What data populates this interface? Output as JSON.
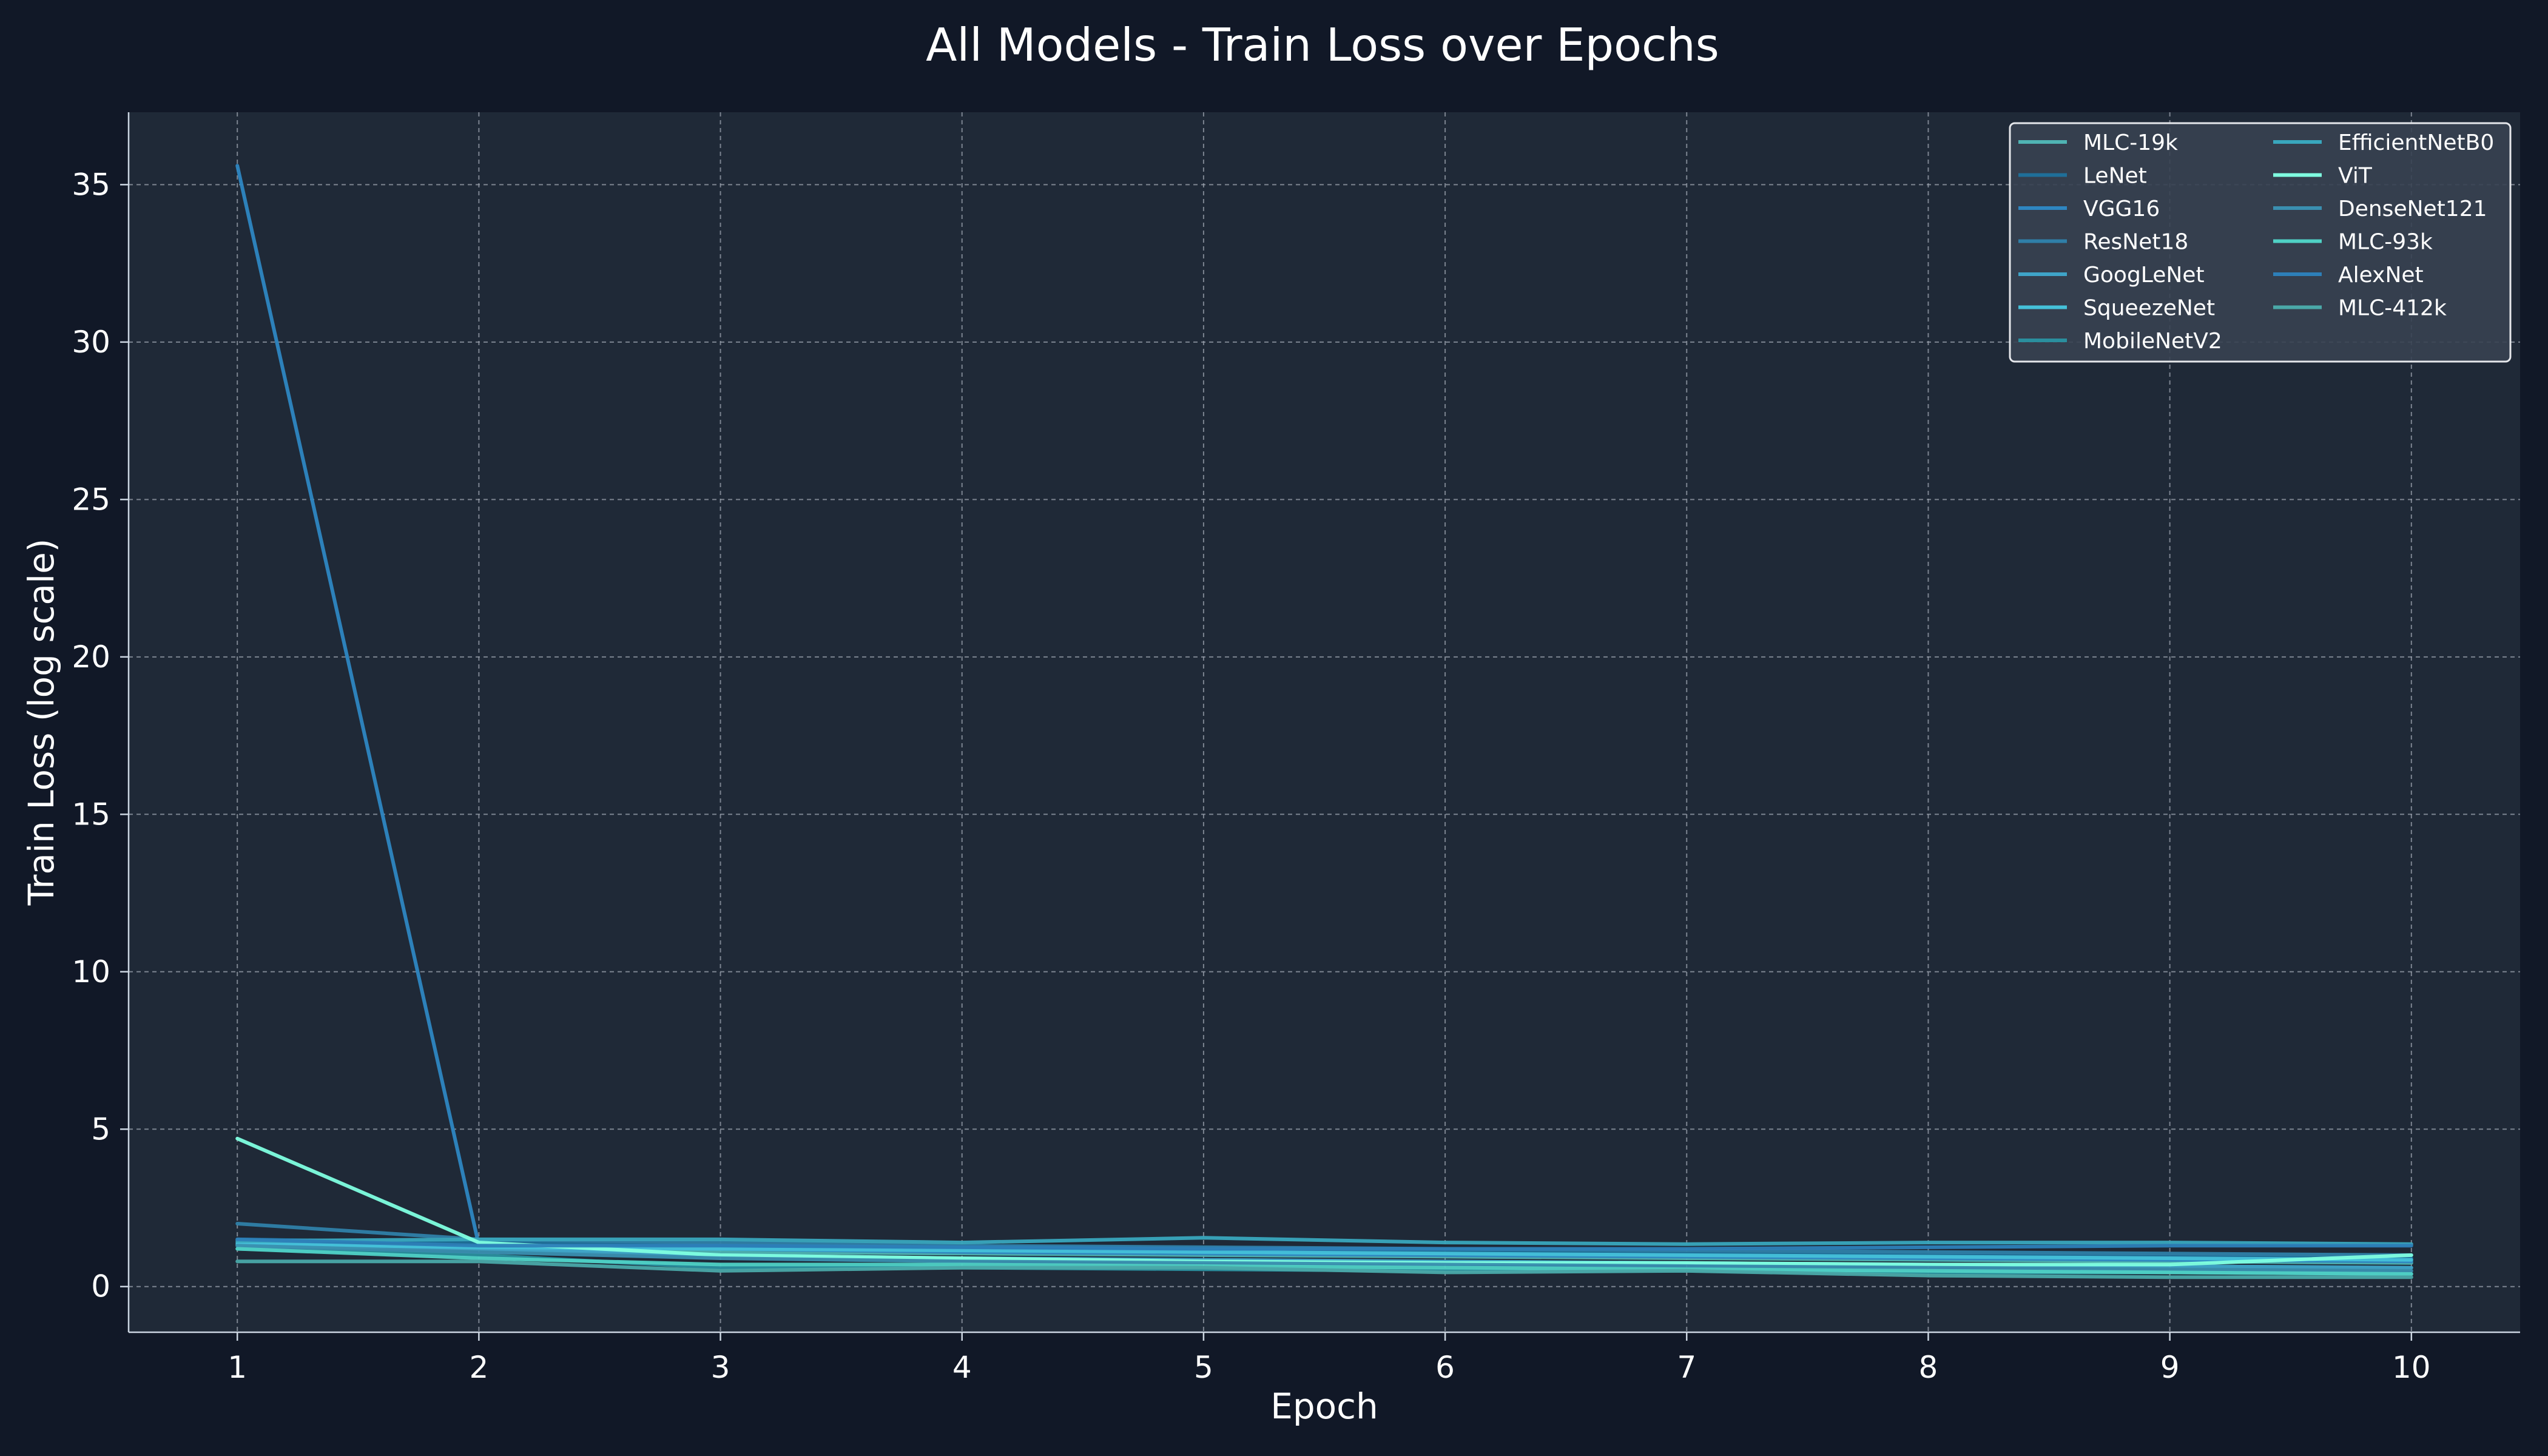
{
  "chart_data": {
    "type": "line",
    "title": "All Models - Train Loss over Epochs",
    "xlabel": "Epoch",
    "ylabel": "Train Loss (log scale)",
    "x": [
      1,
      2,
      3,
      4,
      5,
      6,
      7,
      8,
      9,
      10
    ],
    "xlim": [
      0.55,
      10.45
    ],
    "ylim": [
      -1.45,
      37.3
    ],
    "yticks": [
      0,
      5,
      10,
      15,
      20,
      25,
      30,
      35
    ],
    "grid": true,
    "legend_position": "top-right",
    "legend_columns": 2,
    "colors": {
      "background": "#111827",
      "plot_background": "#1f2937",
      "grid": "#9ca3af",
      "text": "#ffffff"
    },
    "series": [
      {
        "name": "MLC-19k",
        "color": "#4fb3b3",
        "values": [
          1.3,
          1.2,
          1.1,
          1.05,
          1.0,
          0.95,
          0.9,
          0.85,
          0.8,
          0.75
        ]
      },
      {
        "name": "LeNet",
        "color": "#1f6f99",
        "values": [
          1.5,
          1.4,
          1.3,
          1.2,
          1.15,
          1.1,
          1.05,
          1.0,
          0.95,
          0.9
        ]
      },
      {
        "name": "VGG16",
        "color": "#2e86c1",
        "values": [
          35.6,
          1.3,
          1.2,
          1.1,
          1.05,
          1.0,
          0.95,
          0.9,
          0.85,
          0.8
        ]
      },
      {
        "name": "ResNet18",
        "color": "#2f7fa8",
        "values": [
          2.0,
          1.5,
          1.4,
          1.3,
          1.25,
          1.2,
          1.15,
          1.1,
          1.05,
          1.0
        ]
      },
      {
        "name": "GoogLeNet",
        "color": "#3fa4c8",
        "values": [
          1.4,
          1.2,
          1.0,
          0.9,
          0.85,
          0.8,
          0.75,
          0.7,
          0.65,
          0.6
        ]
      },
      {
        "name": "SqueezeNet",
        "color": "#45c1d9",
        "values": [
          1.35,
          1.25,
          1.2,
          1.15,
          1.1,
          1.05,
          1.0,
          0.95,
          0.9,
          0.85
        ]
      },
      {
        "name": "MobileNetV2",
        "color": "#2a8f9e",
        "values": [
          1.2,
          1.0,
          0.6,
          0.6,
          0.55,
          0.5,
          0.5,
          0.45,
          0.45,
          0.4
        ]
      },
      {
        "name": "EfficientNetB0",
        "color": "#39a7bd",
        "values": [
          1.45,
          1.5,
          1.5,
          1.4,
          1.55,
          1.4,
          1.35,
          1.4,
          1.4,
          1.35
        ]
      },
      {
        "name": "ViT",
        "color": "#7fffe0",
        "values": [
          4.7,
          1.4,
          1.0,
          0.9,
          0.8,
          0.75,
          0.75,
          0.7,
          0.7,
          1.0
        ]
      },
      {
        "name": "DenseNet121",
        "color": "#3a8fb0",
        "values": [
          1.3,
          1.1,
          0.9,
          0.8,
          0.75,
          0.7,
          0.65,
          0.6,
          0.55,
          0.5
        ]
      },
      {
        "name": "MLC-93k",
        "color": "#4fd1c5",
        "values": [
          1.2,
          0.9,
          0.7,
          0.7,
          0.65,
          0.6,
          0.55,
          0.5,
          0.45,
          0.4
        ]
      },
      {
        "name": "AlexNet",
        "color": "#2d7fb8",
        "values": [
          1.5,
          1.3,
          1.3,
          1.25,
          1.2,
          1.2,
          1.2,
          1.25,
          1.3,
          1.3
        ]
      },
      {
        "name": "MLC-412k",
        "color": "#4aa8a8",
        "values": [
          0.8,
          0.8,
          0.5,
          0.6,
          0.6,
          0.45,
          0.5,
          0.35,
          0.3,
          0.3
        ]
      }
    ]
  }
}
